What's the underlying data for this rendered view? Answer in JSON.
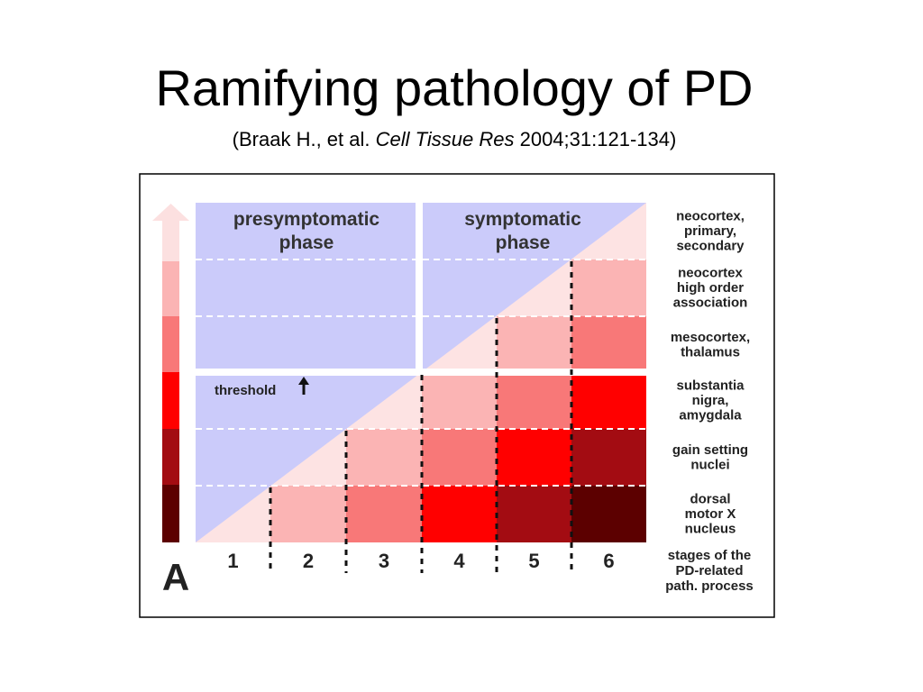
{
  "slide": {
    "title": "Ramifying pathology of PD",
    "citation": {
      "prefix": "(Braak H., et al. ",
      "journal": "Cell Tissue Res",
      "suffix": " 2004;31:121-134)"
    }
  },
  "diagram": {
    "panel_label": "A",
    "phases": [
      {
        "lines": [
          "presymptomatic",
          "phase"
        ]
      },
      {
        "lines": [
          "symptomatic",
          "phase"
        ]
      }
    ],
    "threshold_label": "threshold",
    "stages": [
      "1",
      "2",
      "3",
      "4",
      "5",
      "6"
    ],
    "stages_label": [
      "stages of the",
      "PD-related",
      "path. process"
    ],
    "regions": [
      {
        "lines": [
          "neocortex,",
          "primary,",
          "secondary"
        ]
      },
      {
        "lines": [
          "neocortex",
          "high order",
          "association"
        ]
      },
      {
        "lines": [
          "mesocortex,",
          "thalamus"
        ]
      },
      {
        "lines": [
          "substantia",
          "nigra,",
          "amygdala"
        ]
      },
      {
        "lines": [
          "gain setting",
          "nuclei"
        ]
      },
      {
        "lines": [
          "dorsal",
          "motor X",
          "nucleus"
        ]
      }
    ],
    "severity_colors": [
      "#fce0e0",
      "#fbb4b4",
      "#f87878",
      "#ff0000",
      "#a30c12",
      "#5c0000"
    ],
    "phase_color": "#cbcbfa",
    "progression_color": "#fde3e3"
  }
}
